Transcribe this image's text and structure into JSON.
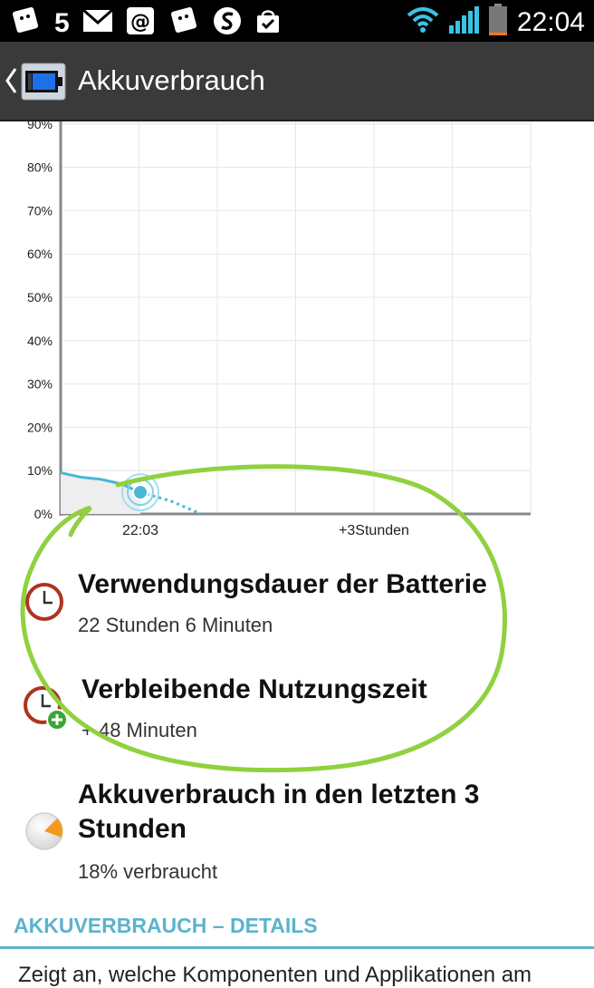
{
  "status_bar": {
    "notification_count": "5",
    "time": "22:04",
    "icons": [
      "app-notification-icon",
      "mail-icon",
      "at-sign-icon",
      "app-notification-icon",
      "swype-icon",
      "shopping-bag-icon",
      "wifi-icon",
      "signal-icon",
      "battery-low-icon"
    ],
    "battery_level": 0.1
  },
  "action_bar": {
    "title": "Akkuverbrauch"
  },
  "chart_data": {
    "type": "line",
    "y_tick_labels": [
      "0%",
      "10%",
      "20%",
      "30%",
      "40%",
      "50%",
      "60%",
      "70%",
      "80%",
      "90%"
    ],
    "x_tick_labels": [
      "22:03",
      "+3Stunden"
    ],
    "ylim": [
      0,
      90
    ],
    "grid": true,
    "series": [
      {
        "values_pct": [
          9.5,
          8.5,
          8.0,
          7.0,
          5.0
        ],
        "style": "solid"
      },
      {
        "values_pct": [
          5.0,
          3.0,
          0.0
        ],
        "style": "dotted"
      }
    ],
    "current_point_pct": 5,
    "colors": {
      "line": "#4ab7d6",
      "fill": "#eeeeee",
      "grid": "#e6e6e6",
      "axis": "#888888"
    }
  },
  "items": [
    {
      "title": "Verwendungsdauer der Batterie",
      "subtitle": "22 Stunden 6 Minuten",
      "icon": "clock-icon"
    },
    {
      "title": "Verbleibende Nutzungszeit",
      "subtitle": "+ 48 Minuten",
      "icon": "clock-plus-icon"
    },
    {
      "title_line1": "Akkuverbrauch in den letzten 3",
      "title_line2": "Stunden",
      "subtitle": "18% verbraucht",
      "icon": "pie-chart-icon",
      "usage_fraction": 0.18
    }
  ],
  "section": {
    "header": "AKKUVERBRAUCH – DETAILS",
    "description": "Zeigt an, welche Komponenten und Applikationen am"
  },
  "colors": {
    "accent": "#5cb3cc",
    "annotation": "#8fd13f",
    "clock_red": "#b0321e",
    "plus_green": "#3aa63a",
    "pie_orange": "#f39a1e"
  }
}
